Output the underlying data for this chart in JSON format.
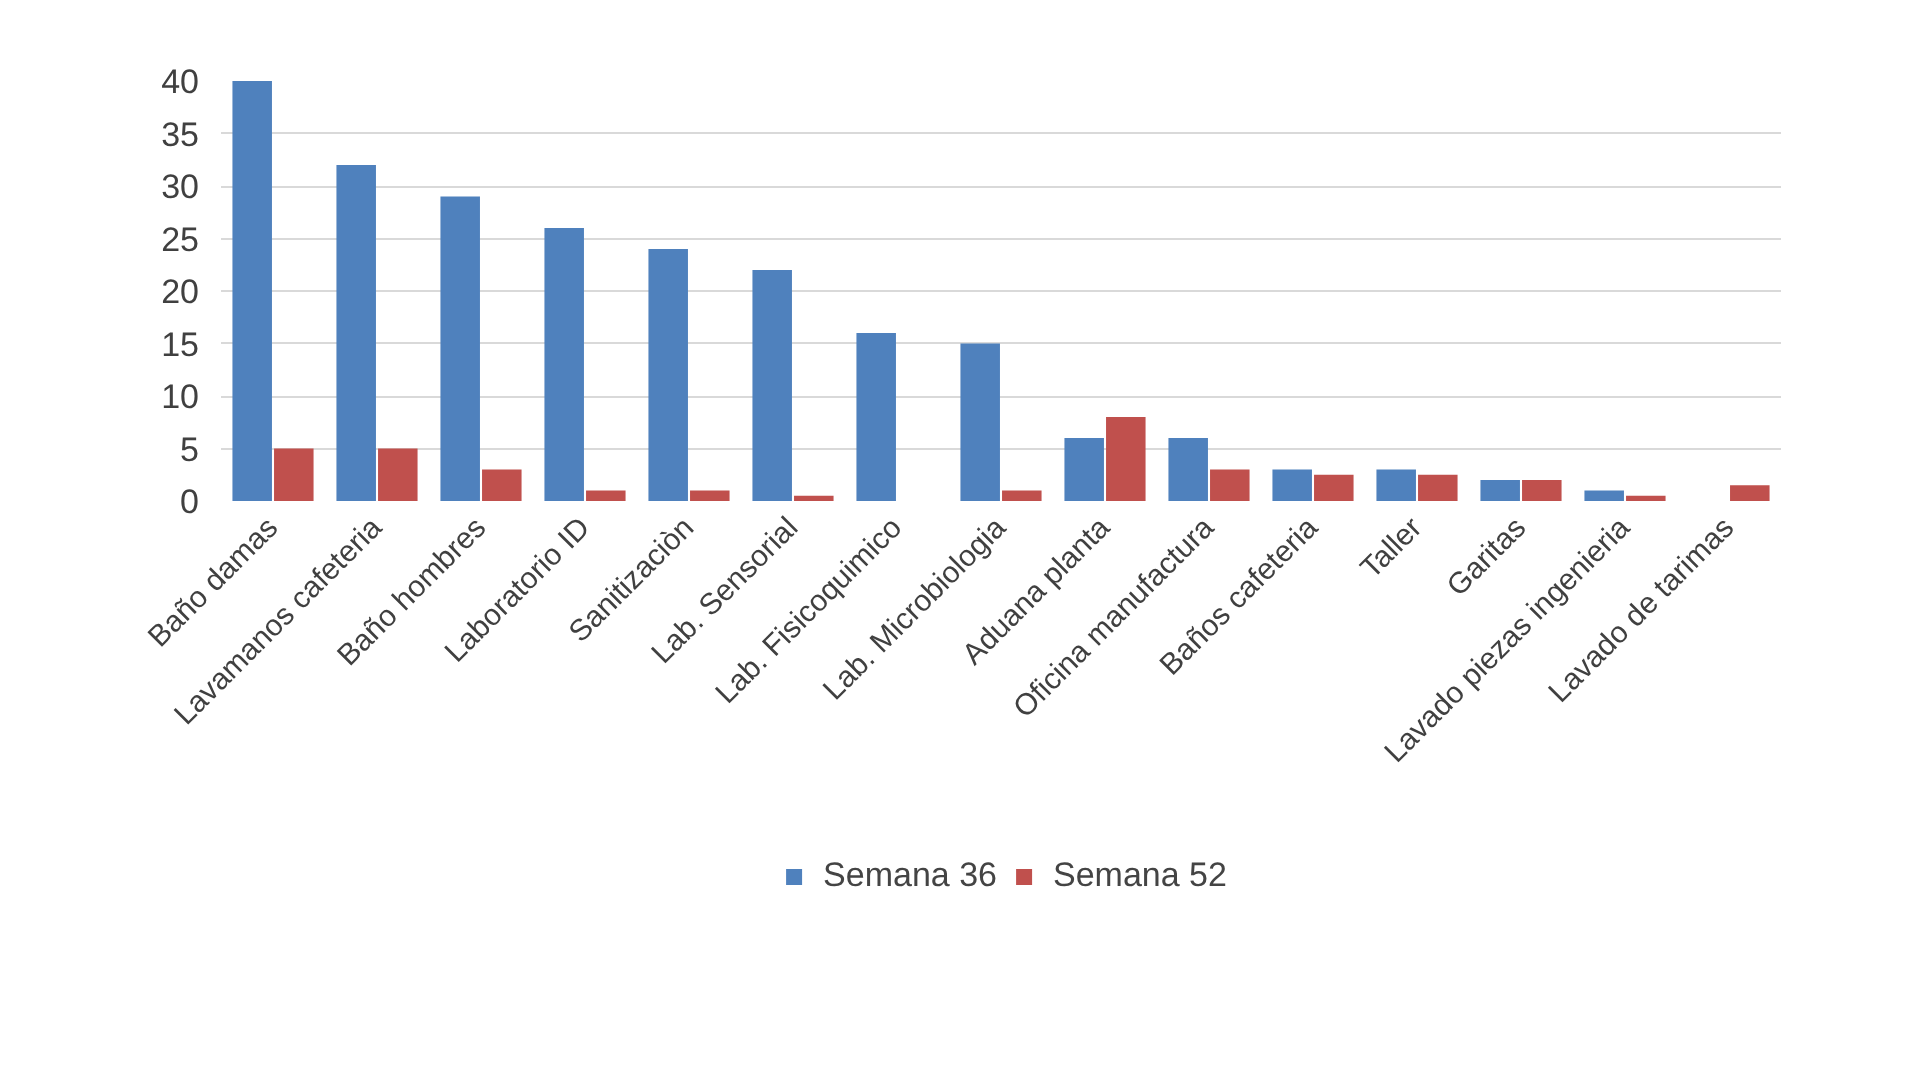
{
  "chart_data": {
    "type": "bar",
    "categories": [
      "Baño damas",
      "Lavamanos cafeteria",
      "Baño hombres",
      "Laboratorio ID",
      "Sanitizaciòn",
      "Lab. Sensorial",
      "Lab. Fisicoquimico",
      "Lab. Microbiologia",
      "Aduana planta",
      "Oficina manufactura",
      "Baños cafeteria",
      "Taller",
      "Garitas",
      "Lavado piezas ingenieria",
      "Lavado de tarimas"
    ],
    "series": [
      {
        "name": "Semana 36",
        "color": "#4f81bd",
        "values": [
          40,
          32,
          29,
          26,
          24,
          22,
          16,
          15,
          6,
          6,
          3,
          3,
          2,
          1,
          0
        ]
      },
      {
        "name": "Semana 52",
        "color": "#c0504d",
        "values": [
          5,
          5,
          3,
          1,
          1,
          0.5,
          0,
          1,
          8,
          3,
          2.5,
          2.5,
          2,
          0.5,
          1.5
        ]
      }
    ],
    "ylim": [
      0,
      40
    ],
    "yticks": [
      0,
      5,
      10,
      15,
      20,
      25,
      30,
      35,
      40
    ],
    "grid": "y",
    "legend": "bottom"
  }
}
